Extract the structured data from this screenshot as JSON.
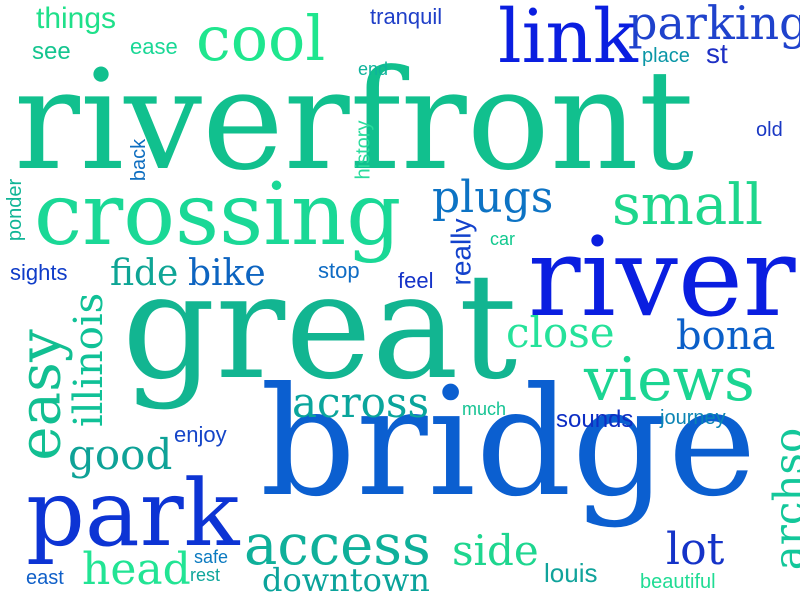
{
  "words": {
    "riverfront": "riverfront",
    "bridge": "bridge",
    "great": "great",
    "river": "river",
    "crossing": "crossing",
    "park": "park",
    "link": "link",
    "cool": "cool",
    "parking": "parking",
    "views": "views",
    "small": "small",
    "access": "access",
    "easy": "easy",
    "plugs": "plugs",
    "close": "close",
    "across": "across",
    "illinois": "illinois",
    "archso": "archso",
    "head": "head",
    "side": "side",
    "lot": "lot",
    "good": "good",
    "bona": "bona",
    "downtown": "downtown",
    "fide": "fide",
    "bike": "bike",
    "things": "things",
    "see": "see",
    "ease": "ease",
    "tranquil": "tranquil",
    "end": "end",
    "place": "place",
    "st": "st",
    "old": "old",
    "history": "history",
    "back": "back",
    "ponder": "ponder",
    "sights": "sights",
    "stop": "stop",
    "car": "car",
    "really": "really",
    "feel": "feel",
    "much": "much",
    "sounds": "sounds",
    "journey": "journey",
    "enjoy": "enjoy",
    "safe": "safe",
    "rest": "rest",
    "east": "east",
    "louis": "louis",
    "beautiful": "beautiful"
  },
  "colors": {
    "teal": "#0fa596",
    "mint": "#1fe08a",
    "green": "#10d48c",
    "blue": "#0a1ee0",
    "royal": "#0b5fd0",
    "navy": "#1530c0",
    "sea": "#08b39a",
    "cyan": "#0d8fb0"
  }
}
